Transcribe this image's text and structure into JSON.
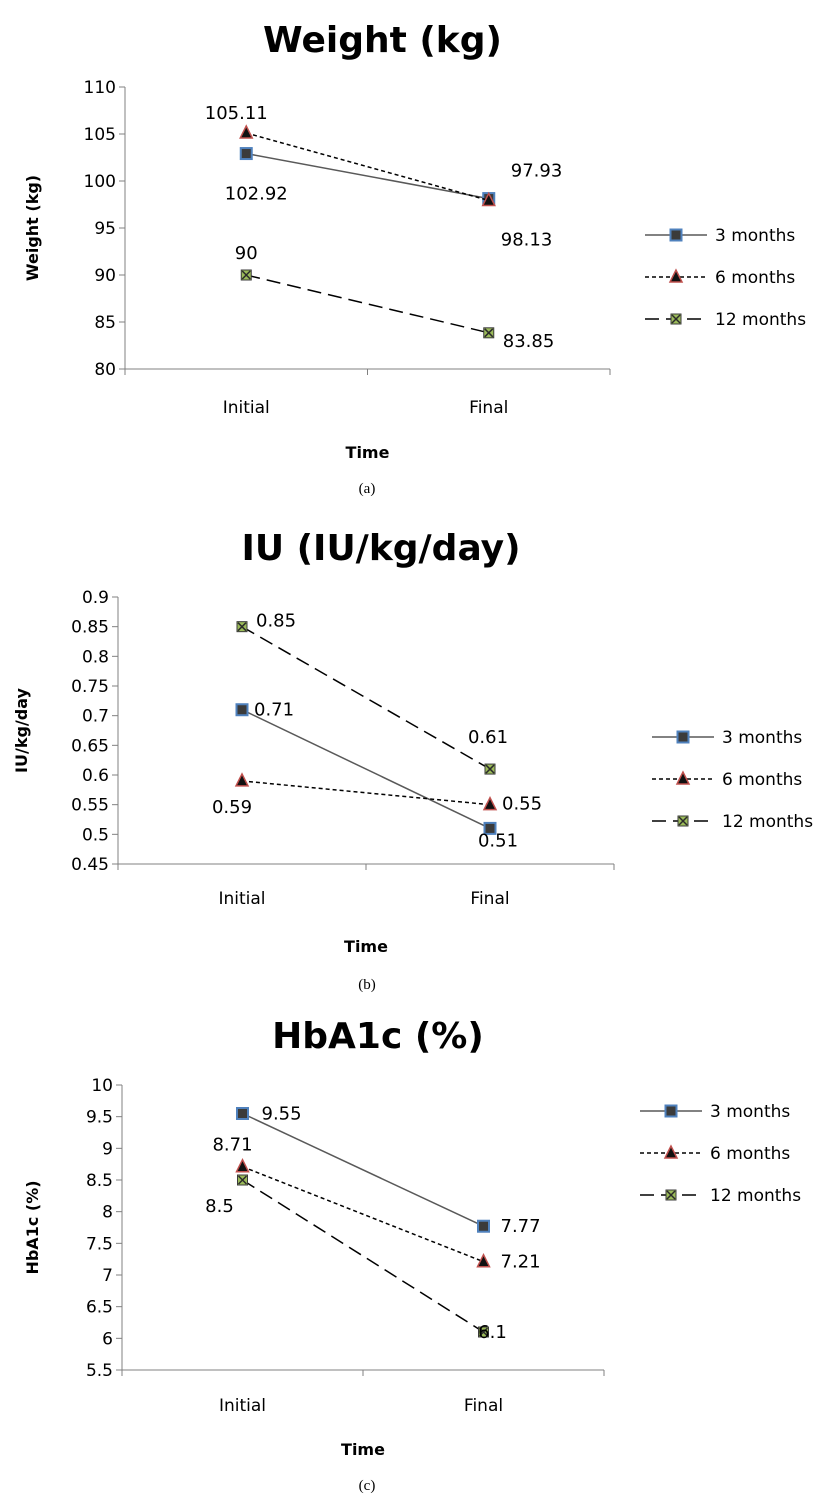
{
  "chart_data": [
    {
      "type": "line",
      "title": "Weight (kg)",
      "xlabel": "Time",
      "ylabel": "Weight (kg)",
      "caption": "(a)",
      "categories": [
        "Initial",
        "Final"
      ],
      "ylim": [
        80,
        110
      ],
      "ystep": 5,
      "ytick_labels": [
        "80",
        "85",
        "90",
        "95",
        "100",
        "105",
        "110"
      ],
      "legend_position": "right",
      "series": [
        {
          "name": "3 months",
          "values": [
            102.92,
            98.13
          ],
          "labels": [
            "102.92",
            "98.13"
          ]
        },
        {
          "name": "6 months",
          "values": [
            105.11,
            97.93
          ],
          "labels": [
            "105.11",
            "97.93"
          ]
        },
        {
          "name": "12 months",
          "values": [
            90,
            83.85
          ],
          "labels": [
            "90",
            "83.85"
          ]
        }
      ]
    },
    {
      "type": "line",
      "title": "IU (IU/kg/day)",
      "xlabel": "Time",
      "ylabel": "IU/kg/day",
      "caption": "(b)",
      "categories": [
        "Initial",
        "Final"
      ],
      "ylim": [
        0.45,
        0.9
      ],
      "ystep": 0.05,
      "ytick_labels": [
        "0.45",
        "0.5",
        "0.55",
        "0.6",
        "0.65",
        "0.7",
        "0.75",
        "0.8",
        "0.85",
        "0.9"
      ],
      "legend_position": "right",
      "series": [
        {
          "name": "3 months",
          "values": [
            0.71,
            0.51
          ],
          "labels": [
            "0.71",
            "0.51"
          ]
        },
        {
          "name": "6 months",
          "values": [
            0.59,
            0.55
          ],
          "labels": [
            "0.59",
            "0.55"
          ]
        },
        {
          "name": "12 months",
          "values": [
            0.85,
            0.61
          ],
          "labels": [
            "0.85",
            "0.61"
          ]
        }
      ]
    },
    {
      "type": "line",
      "title": "HbA1c (%)",
      "xlabel": "Time",
      "ylabel": "HbA1c (%)",
      "caption": "(c)",
      "categories": [
        "Initial",
        "Final"
      ],
      "ylim": [
        5.5,
        10
      ],
      "ystep": 0.5,
      "ytick_labels": [
        "5.5",
        "6",
        "6.5",
        "7",
        "7.5",
        "8",
        "8.5",
        "9",
        "9.5",
        "10"
      ],
      "legend_position": "right",
      "series": [
        {
          "name": "3 months",
          "values": [
            9.55,
            7.77
          ],
          "labels": [
            "9.55",
            "7.77"
          ]
        },
        {
          "name": "6 months",
          "values": [
            8.71,
            7.21
          ],
          "labels": [
            "8.71",
            "7.21"
          ]
        },
        {
          "name": "12 months",
          "values": [
            8.5,
            6.1
          ],
          "labels": [
            "8.5",
            "6.1"
          ]
        }
      ]
    }
  ],
  "series_style": [
    {
      "line_color": "#595959",
      "dash": "",
      "marker": "square",
      "marker_fill": "#3b3b3b",
      "marker_stroke": "#4f81bd"
    },
    {
      "line_color": "#000000",
      "dash": "4,3",
      "marker": "triangle",
      "marker_fill": "#111111",
      "marker_stroke": "#c0504d"
    },
    {
      "line_color": "#000000",
      "dash": "14,7",
      "marker": "x-square",
      "marker_fill": "#9bbb59",
      "marker_stroke": "#3b3b3b"
    }
  ]
}
